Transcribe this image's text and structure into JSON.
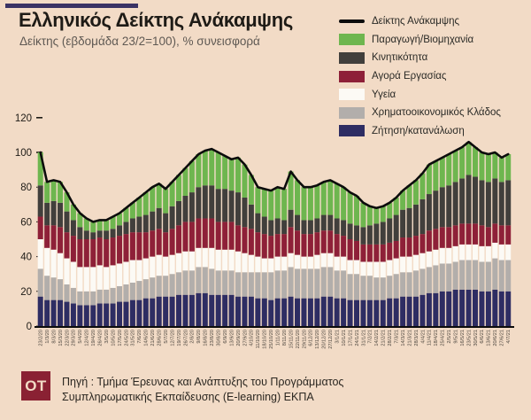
{
  "header": {
    "title": "Ελληνικός Δείκτης Ανάκαμψης",
    "subtitle": "Δείκτης (εβδομάδα 23/2=100), % συνεισφορά"
  },
  "colors": {
    "background": "#f2dbc6",
    "accent_bar": "#3a3264",
    "index_line": "#0c0c0c",
    "production_green": "#6eb64f",
    "mobility_darkgray": "#413f3c",
    "labor_darkred": "#8e2038",
    "health_white": "#fcfaf5",
    "finance_lightgray": "#b2aeab",
    "demand_navy": "#2e2d63",
    "logo_bg": "#8a2133",
    "axis_text": "#1e1b16",
    "x_label_text": "#4c463f"
  },
  "legend": {
    "items": [
      {
        "label": "Δείκτης Ανάκαμψης",
        "swatch": "line",
        "color": "#0c0c0c"
      },
      {
        "label": "Παραγωγή/Βιομηχανία",
        "swatch": "rect",
        "color": "#6eb64f"
      },
      {
        "label": "Κινητικότητα",
        "swatch": "rect",
        "color": "#413f3c"
      },
      {
        "label": "Αγορά Εργασίας",
        "swatch": "rect",
        "color": "#8e2038"
      },
      {
        "label": "Υγεία",
        "swatch": "rect",
        "color": "#fcfaf5"
      },
      {
        "label": "Χρηματοοικονομικός Κλάδος",
        "swatch": "rect",
        "color": "#b2aeab"
      },
      {
        "label": "Ζήτηση/κατανάλωση",
        "swatch": "rect",
        "color": "#2e2d63"
      }
    ]
  },
  "chart_data": {
    "type": "bar",
    "variant": "stacked-bars-with-line-overlay",
    "title": "Ελληνικός Δείκτης Ανάκαμψης",
    "subtitle": "Δείκτης (εβδομάδα 23/2=100), % συνεισφορά",
    "ylim": [
      0,
      120
    ],
    "y_ticks": [
      0,
      20,
      40,
      60,
      80,
      100,
      120
    ],
    "grid": false,
    "legend_position": "top-right",
    "x_labels": [
      "23/2/20",
      "1/3/20",
      "8/3/20",
      "15/3/20",
      "22/3/20",
      "29/3/20",
      "5/4/20",
      "12/4/20",
      "19/4/20",
      "26/4/20",
      "3/5/20",
      "10/5/20",
      "17/5/20",
      "24/5/20",
      "31/5/20",
      "7/6/20",
      "14/6/20",
      "21/6/20",
      "28/6/20",
      "5/7/20",
      "12/7/20",
      "19/7/20",
      "26/7/20",
      "2/8/20",
      "9/8/20",
      "16/8/20",
      "23/8/20",
      "30/8/20",
      "6/9/20",
      "13/9/20",
      "20/9/20",
      "27/9/20",
      "4/10/20",
      "11/10/20",
      "18/10/20",
      "25/10/20",
      "1/11/20",
      "8/11/20",
      "15/11/20",
      "22/11/20",
      "29/11/20",
      "6/12/20",
      "13/12/20",
      "20/12/20",
      "27/12/20",
      "3/1/21",
      "10/1/21",
      "17/1/21",
      "24/1/21",
      "31/1/21",
      "7/2/21",
      "14/2/21",
      "21/2/21",
      "28/2/21",
      "7/3/21",
      "14/3/21",
      "21/3/21",
      "28/3/21",
      "4/4/21",
      "11/4/21",
      "18/4/21",
      "25/4/21",
      "2/5/21",
      "9/5/21",
      "16/5/21",
      "23/5/21",
      "30/5/21",
      "6/6/21",
      "13/6/21",
      "20/6/21",
      "27/6/21",
      "4/7/21"
    ],
    "series": [
      {
        "name": "Ζήτηση/κατανάλωση",
        "color": "#2e2d63",
        "values": [
          17,
          15,
          15,
          15,
          14,
          13,
          12,
          12,
          12,
          13,
          13,
          13,
          14,
          14,
          15,
          15,
          16,
          16,
          17,
          17,
          17,
          18,
          18,
          18,
          19,
          19,
          18,
          18,
          18,
          18,
          17,
          17,
          17,
          16,
          16,
          15,
          16,
          16,
          17,
          16,
          16,
          16,
          16,
          17,
          17,
          16,
          16,
          15,
          15,
          15,
          15,
          15,
          15,
          16,
          16,
          17,
          17,
          17,
          18,
          19,
          19,
          20,
          20,
          21,
          21,
          21,
          21,
          20,
          20,
          21,
          20,
          20
        ]
      },
      {
        "name": "Χρηματοοικονομικός Κλάδος",
        "color": "#b2aeab",
        "values": [
          16,
          14,
          13,
          12,
          10,
          9,
          8,
          8,
          8,
          8,
          8,
          9,
          9,
          10,
          10,
          11,
          11,
          12,
          12,
          12,
          13,
          13,
          14,
          14,
          15,
          15,
          15,
          14,
          14,
          14,
          14,
          14,
          14,
          15,
          15,
          16,
          16,
          16,
          17,
          17,
          17,
          17,
          17,
          17,
          17,
          16,
          16,
          15,
          15,
          14,
          14,
          13,
          13,
          13,
          14,
          14,
          14,
          15,
          15,
          15,
          16,
          16,
          16,
          16,
          17,
          17,
          17,
          17,
          17,
          18,
          18,
          18
        ]
      },
      {
        "name": "Υγεία",
        "color": "#fcfaf5",
        "values": [
          17,
          16,
          16,
          15,
          15,
          15,
          14,
          14,
          14,
          14,
          13,
          13,
          13,
          13,
          13,
          12,
          12,
          12,
          12,
          11,
          11,
          11,
          11,
          11,
          11,
          11,
          12,
          12,
          12,
          12,
          12,
          11,
          10,
          9,
          8,
          8,
          8,
          8,
          8,
          8,
          7,
          7,
          8,
          8,
          8,
          8,
          8,
          8,
          8,
          8,
          8,
          9,
          9,
          9,
          9,
          9,
          9,
          9,
          9,
          9,
          9,
          9,
          9,
          9,
          9,
          9,
          9,
          9,
          9,
          9,
          9,
          9
        ]
      },
      {
        "name": "Αγορά Εργασίας",
        "color": "#8e2038",
        "values": [
          13,
          13,
          14,
          15,
          15,
          15,
          16,
          16,
          16,
          16,
          16,
          16,
          16,
          16,
          16,
          16,
          15,
          15,
          15,
          14,
          15,
          16,
          17,
          17,
          17,
          17,
          17,
          16,
          16,
          16,
          15,
          15,
          15,
          14,
          14,
          13,
          13,
          13,
          15,
          14,
          13,
          13,
          13,
          13,
          13,
          13,
          12,
          12,
          11,
          10,
          10,
          10,
          10,
          10,
          10,
          11,
          11,
          11,
          11,
          12,
          12,
          12,
          12,
          12,
          12,
          12,
          12,
          12,
          11,
          11,
          11,
          11
        ]
      },
      {
        "name": "Κινητικότητα",
        "color": "#413f3c",
        "values": [
          18,
          13,
          14,
          14,
          12,
          9,
          7,
          5,
          4,
          4,
          5,
          5,
          6,
          7,
          8,
          9,
          10,
          11,
          12,
          11,
          13,
          14,
          15,
          17,
          18,
          19,
          19,
          19,
          19,
          18,
          19,
          17,
          14,
          11,
          10,
          9,
          9,
          8,
          10,
          9,
          8,
          8,
          8,
          9,
          9,
          9,
          9,
          9,
          9,
          10,
          11,
          12,
          13,
          14,
          15,
          16,
          17,
          18,
          20,
          21,
          22,
          23,
          24,
          25,
          26,
          28,
          27,
          26,
          26,
          26,
          25,
          26
        ]
      },
      {
        "name": "Παραγωγή/Βιομηχανία",
        "color": "#6eb64f",
        "values": [
          19,
          12,
          12,
          12,
          11,
          9,
          8,
          7,
          6,
          6,
          6,
          7,
          7,
          8,
          9,
          11,
          13,
          14,
          14,
          14,
          14,
          15,
          16,
          18,
          19,
          20,
          21,
          21,
          19,
          18,
          20,
          19,
          17,
          15,
          16,
          17,
          18,
          18,
          22,
          20,
          19,
          19,
          19,
          19,
          20,
          20,
          19,
          18,
          17,
          14,
          11,
          9,
          9,
          9,
          10,
          11,
          13,
          14,
          15,
          17,
          17,
          17,
          18,
          18,
          18,
          19,
          17,
          16,
          16,
          15,
          14,
          15
        ]
      }
    ],
    "line": {
      "name": "Δείκτης Ανάκαμψης",
      "color": "#0c0c0c",
      "values": [
        100,
        83,
        84,
        83,
        77,
        70,
        65,
        62,
        60,
        61,
        61,
        63,
        65,
        68,
        71,
        74,
        77,
        80,
        82,
        79,
        83,
        87,
        91,
        95,
        99,
        101,
        102,
        100,
        98,
        96,
        97,
        93,
        87,
        80,
        79,
        78,
        80,
        79,
        89,
        84,
        80,
        80,
        81,
        83,
        84,
        82,
        80,
        77,
        75,
        71,
        69,
        68,
        69,
        71,
        74,
        78,
        81,
        84,
        88,
        93,
        95,
        97,
        99,
        101,
        103,
        106,
        103,
        100,
        99,
        100,
        97,
        99
      ]
    }
  },
  "footer": {
    "logo_text": "OT",
    "source_line1": "Πηγή : Τμήμα Έρευνας και Ανάπτυξης του Προγράμματος",
    "source_line2": "Συμπληρωματικής Εκπαίδευσης (E-learning) ΕΚΠΑ"
  }
}
